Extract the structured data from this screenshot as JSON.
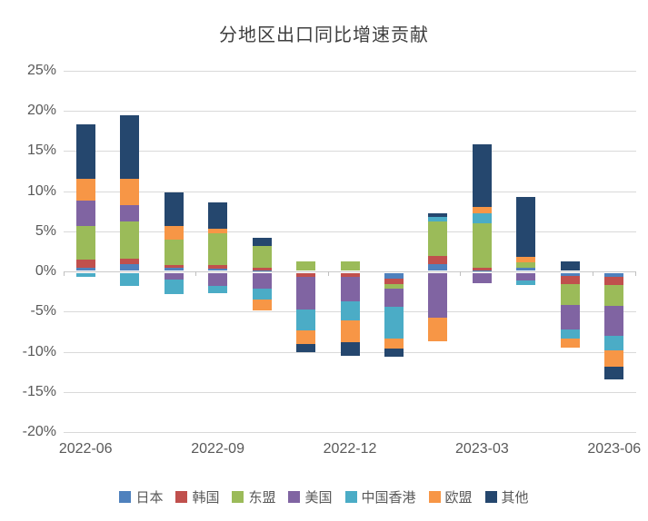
{
  "title": "分地区出口同比增速贡献",
  "axes": {
    "y_tick_labels": [
      "25%",
      "20%",
      "15%",
      "10%",
      "5%",
      "0%",
      "-5%",
      "-10%",
      "-15%",
      "-20%"
    ],
    "x_tick_labels": [
      "2022-06",
      "2022-09",
      "2022-12",
      "2023-03",
      "2023-06"
    ]
  },
  "colors": {
    "gridline": "#d9d9d9",
    "axis_text": "#595959",
    "title_text": "#3f3f3f",
    "background": "#ffffff"
  },
  "chart_data": {
    "type": "bar",
    "stacked": true,
    "title": "分地区出口同比增速贡献",
    "xlabel": "",
    "ylabel": "",
    "unit": "percentage points (contribution to export YoY growth)",
    "ylim": [
      -20,
      25
    ],
    "ytick_step": 5,
    "ytick_format": "percent",
    "grid": true,
    "legend_position": "bottom",
    "categories": [
      "2022-06",
      "2022-07",
      "2022-08",
      "2022-09",
      "2022-10",
      "2022-11",
      "2022-12",
      "2023-01",
      "2023-02",
      "2023-03",
      "2023-04",
      "2023-05",
      "2023-06"
    ],
    "x_axis_shown_labels": [
      "2022-06",
      "2022-09",
      "2022-12",
      "2023-03",
      "2023-06"
    ],
    "series": [
      {
        "id": "japan",
        "name": "日本",
        "color": "#4F81BD",
        "values": [
          0.5,
          0.9,
          0.5,
          0.4,
          0.1,
          0.0,
          0.0,
          -0.9,
          0.9,
          0.1,
          0.45,
          -0.6,
          -0.7
        ]
      },
      {
        "id": "korea",
        "name": "韩国",
        "color": "#C0504D",
        "values": [
          1.0,
          0.7,
          0.35,
          0.35,
          0.35,
          -0.7,
          -0.7,
          -0.65,
          1.05,
          0.4,
          0.0,
          -0.95,
          -1.0
        ]
      },
      {
        "id": "asean",
        "name": "东盟",
        "color": "#9BBB59",
        "values": [
          4.2,
          4.6,
          3.1,
          4.0,
          2.7,
          1.25,
          1.3,
          -0.6,
          4.25,
          5.45,
          0.7,
          -2.6,
          -2.6
        ]
      },
      {
        "id": "usa",
        "name": "美国",
        "color": "#8064A2",
        "values": [
          3.1,
          2.1,
          -1.0,
          -1.8,
          -2.1,
          -4.0,
          -3.0,
          -2.25,
          -5.75,
          -1.5,
          -1.15,
          -3.1,
          -3.75
        ]
      },
      {
        "id": "hongkong",
        "name": "中国香港",
        "color": "#4BACC6",
        "values": [
          -0.7,
          -1.8,
          -1.8,
          -0.9,
          -1.4,
          -2.65,
          -2.35,
          -4.0,
          0.55,
          1.3,
          -0.55,
          -1.05,
          -1.8
        ]
      },
      {
        "id": "eu",
        "name": "欧盟",
        "color": "#F79646",
        "values": [
          2.7,
          3.3,
          1.7,
          0.6,
          -1.4,
          -1.7,
          -2.8,
          -1.25,
          -2.9,
          0.75,
          0.7,
          -1.15,
          -2.0
        ]
      },
      {
        "id": "other",
        "name": "其他",
        "color": "#25476E",
        "values": [
          6.8,
          7.9,
          4.2,
          3.2,
          1.1,
          -0.95,
          -1.7,
          -1.0,
          0.55,
          7.8,
          7.4,
          1.2,
          -1.6
        ]
      }
    ]
  }
}
